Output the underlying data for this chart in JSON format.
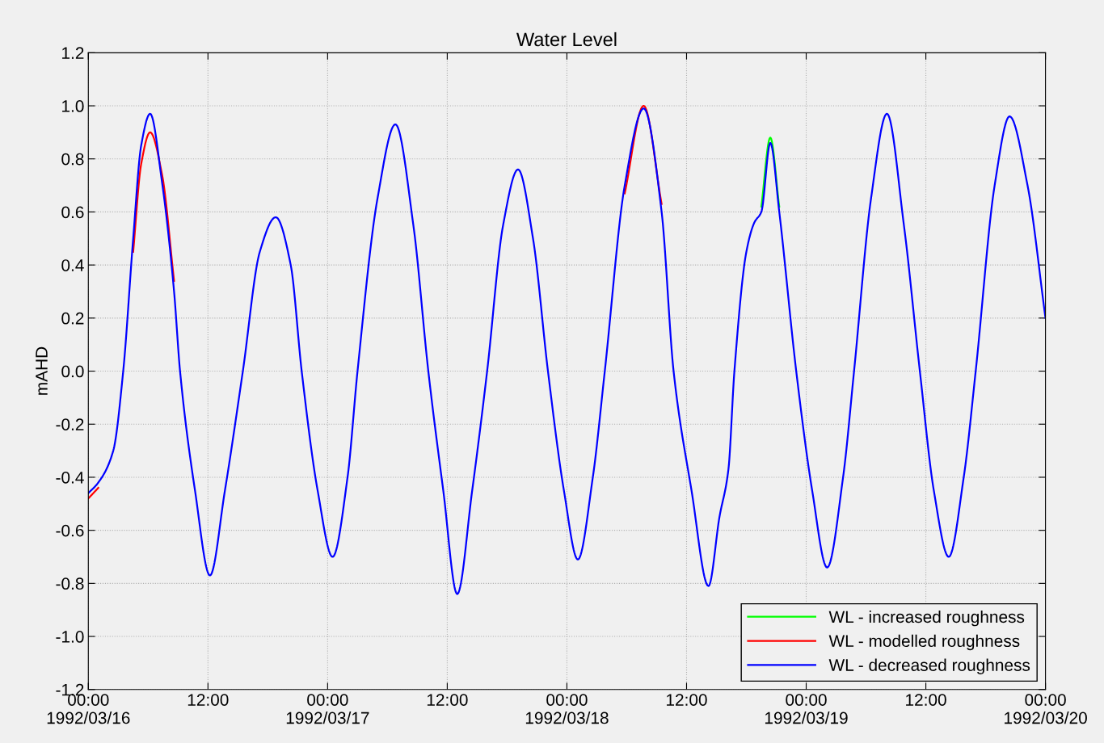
{
  "chart_data": {
    "type": "line",
    "title": "Water Level",
    "ylabel": "mAHD",
    "x": [
      "1992-03-16T00:00",
      "1992-03-16T01:00",
      "1992-03-16T02:30",
      "1992-03-16T03:30",
      "1992-03-16T04:30",
      "1992-03-16T05:18",
      "1992-03-16T06:12",
      "1992-03-16T07:24",
      "1992-03-16T08:36",
      "1992-03-16T09:12",
      "1992-03-16T10:42",
      "1992-03-16T12:12",
      "1992-03-16T13:42",
      "1992-03-16T15:30",
      "1992-03-16T17:12",
      "1992-03-16T18:48",
      "1992-03-16T20:18",
      "1992-03-16T21:24",
      "1992-03-16T23:00",
      "1992-03-17T00:30",
      "1992-03-17T02:00",
      "1992-03-17T03:00",
      "1992-03-17T05:00",
      "1992-03-17T06:48",
      "1992-03-17T08:36",
      "1992-03-17T10:06",
      "1992-03-17T11:36",
      "1992-03-17T13:00",
      "1992-03-17T14:30",
      "1992-03-17T16:00",
      "1992-03-17T17:36",
      "1992-03-17T19:06",
      "1992-03-17T20:36",
      "1992-03-17T22:06",
      "1992-03-17T23:42",
      "1992-03-18T01:06",
      "1992-03-18T02:36",
      "1992-03-18T03:48",
      "1992-03-18T05:48",
      "1992-03-18T07:42",
      "1992-03-18T09:30",
      "1992-03-18T10:42",
      "1992-03-18T12:30",
      "1992-03-18T14:12",
      "1992-03-18T15:18",
      "1992-03-18T16:12",
      "1992-03-18T16:48",
      "1992-03-18T18:00",
      "1992-03-18T18:48",
      "1992-03-18T19:30",
      "1992-03-18T20:24",
      "1992-03-18T21:18",
      "1992-03-18T23:00",
      "1992-03-19T00:36",
      "1992-03-19T02:06",
      "1992-03-19T03:42",
      "1992-03-19T04:48",
      "1992-03-19T06:30",
      "1992-03-19T08:06",
      "1992-03-19T09:48",
      "1992-03-19T11:24",
      "1992-03-19T12:48",
      "1992-03-19T14:18",
      "1992-03-19T15:48",
      "1992-03-19T17:00",
      "1992-03-19T18:54",
      "1992-03-19T20:24",
      "1992-03-19T22:12",
      "1992-03-20T00:00"
    ],
    "series": [
      {
        "name": "WL - increased roughness",
        "color": "#00ff00",
        "values": [
          null,
          null,
          null,
          null,
          null,
          null,
          null,
          null,
          null,
          null,
          null,
          null,
          null,
          null,
          null,
          null,
          null,
          null,
          null,
          null,
          null,
          null,
          null,
          null,
          null,
          null,
          null,
          null,
          null,
          null,
          null,
          null,
          null,
          null,
          null,
          null,
          null,
          null,
          null,
          null,
          null,
          null,
          null,
          null,
          null,
          null,
          null,
          null,
          null,
          0.62,
          0.88,
          0.62,
          null,
          null,
          null,
          null,
          null,
          null,
          null,
          null,
          null,
          null,
          null,
          null,
          null,
          null,
          null,
          null,
          null
        ]
      },
      {
        "name": "WL - modelled roughness",
        "color": "#ff0000",
        "values": [
          -0.48,
          -0.44,
          null,
          null,
          0.45,
          0.78,
          0.9,
          0.74,
          0.34,
          null,
          null,
          null,
          null,
          null,
          null,
          null,
          null,
          null,
          null,
          null,
          null,
          null,
          null,
          null,
          null,
          null,
          null,
          null,
          null,
          null,
          null,
          null,
          null,
          null,
          null,
          null,
          null,
          null,
          0.67,
          1.0,
          0.63,
          null,
          null,
          null,
          null,
          null,
          null,
          null,
          null,
          null,
          null,
          null,
          null,
          null,
          null,
          null,
          null,
          null,
          null,
          null,
          null,
          null,
          null,
          null,
          null,
          null,
          null,
          null,
          null
        ]
      },
      {
        "name": "WL - decreased roughness",
        "color": "#0000ff",
        "values": [
          -0.46,
          -0.42,
          -0.3,
          0.0,
          0.5,
          0.85,
          0.97,
          0.71,
          0.3,
          0.0,
          -0.45,
          -0.77,
          -0.45,
          0.0,
          0.45,
          0.58,
          0.4,
          0.0,
          -0.45,
          -0.7,
          -0.4,
          0.0,
          0.65,
          0.93,
          0.55,
          0.0,
          -0.45,
          -0.84,
          -0.45,
          0.0,
          0.55,
          0.76,
          0.5,
          0.0,
          -0.45,
          -0.71,
          -0.4,
          0.0,
          0.7,
          0.99,
          0.6,
          0.0,
          -0.45,
          -0.81,
          -0.55,
          -0.37,
          0.0,
          0.45,
          0.56,
          0.6,
          0.86,
          0.6,
          0.0,
          -0.45,
          -0.74,
          -0.4,
          0.0,
          0.65,
          0.97,
          0.55,
          0.0,
          -0.45,
          -0.7,
          -0.4,
          0.0,
          0.7,
          0.96,
          0.7,
          0.2
        ]
      }
    ],
    "xlim": [
      "1992-03-16T00:00",
      "1992-03-20T00:00"
    ],
    "xticks": [
      {
        "value": "1992-03-16T00:00",
        "label": "00:00\n1992/03/16"
      },
      {
        "value": "1992-03-16T12:00",
        "label": "12:00"
      },
      {
        "value": "1992-03-17T00:00",
        "label": "00:00\n1992/03/17"
      },
      {
        "value": "1992-03-17T12:00",
        "label": "12:00"
      },
      {
        "value": "1992-03-18T00:00",
        "label": "00:00\n1992/03/18"
      },
      {
        "value": "1992-03-18T12:00",
        "label": "12:00"
      },
      {
        "value": "1992-03-19T00:00",
        "label": "00:00\n1992/03/19"
      },
      {
        "value": "1992-03-19T12:00",
        "label": "12:00"
      },
      {
        "value": "1992-03-20T00:00",
        "label": "00:00\n1992/03/20"
      }
    ],
    "ylim": [
      -1.2,
      1.2
    ],
    "yticks": [
      {
        "value": -1.2,
        "label": "-1.2"
      },
      {
        "value": -1,
        "label": "-1.0"
      },
      {
        "value": -0.8,
        "label": "-0.8"
      },
      {
        "value": -0.6,
        "label": "-0.6"
      },
      {
        "value": -0.4,
        "label": "-0.4"
      },
      {
        "value": -0.2,
        "label": "-0.2"
      },
      {
        "value": 0,
        "label": "0.0"
      },
      {
        "value": 0.2,
        "label": "0.2"
      },
      {
        "value": 0.4,
        "label": "0.4"
      },
      {
        "value": 0.6,
        "label": "0.6"
      },
      {
        "value": 0.8,
        "label": "0.8"
      },
      {
        "value": 1,
        "label": "1.0"
      },
      {
        "value": 1.2,
        "label": "1.2"
      }
    ],
    "grid": true,
    "legend": "bottom right",
    "line_style": "solid",
    "marker": "none"
  }
}
